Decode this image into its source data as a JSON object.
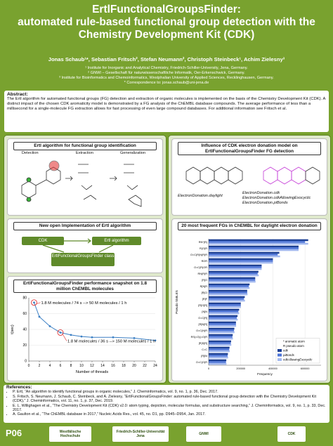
{
  "header": {
    "title_lines": [
      "ErtlFunctionalGroupsFinder:",
      "automated rule-based functional group detection with the",
      "Chemistry Development Kit (CDK)"
    ],
    "authors": "Jonas Schaub¹*, Sebastian Fritsch², Stefan Neumann², Christoph Steinbeck¹, Achim Zielesny³",
    "affiliations": [
      "¹ Institute for Inorganic and Analytical Chemistry, Friedrich-Schiller-University, Jena, Germany.",
      "² GNWI – Gesellschaft für naturwissenschaftliche Informatik, Oer-Erkenschwick, Germany.",
      "³ Institute for Bioinformatics and Chemoinformatics, Westphalian University of Applied Sciences, Recklinghausen, Germany.",
      "* Correspondence to: jonas.schaub@uni-jena.de"
    ]
  },
  "abstract": {
    "heading": "Abstract:",
    "text": "The Ertl algorithm for automated functional groups (FG) detection and extraction of organic molecules is implemented on the basis of the Chemistry Development Kit (CDK). A distinct impact of the chosen CDK aromaticity model is demonstrated by a FG analysis of the ChEMBL database compounds. The average performance of less than a millisecond for a single-molecule FG extraction allows for fast processing of even large compound databases. For additional information see Fritsch et al."
  },
  "ertl_panel": {
    "heading": "Ertl algorithm for functional group identification",
    "steps": [
      "Detection",
      "Extraction",
      "Generalization"
    ]
  },
  "implementation_panel": {
    "heading": "New open Implementation of Ertl algorithm",
    "nodes": [
      "CDK",
      "Ertl algorithm",
      "ErtlFunctionalGroupsFinder class"
    ]
  },
  "performance_panel": {
    "heading": "ErtlFunctionalGroupsFinder performance snapshot on 1.8 million ChEMBL molecules"
  },
  "donation_panel": {
    "heading": "Influence of CDK electron donation model on ErtlFunctionalGroupsFinder FG detection",
    "labels": [
      "ElectronDonation.daylight",
      "ElectronDonation.cdk",
      "ElectronDonation.cdkAllowingExocyclic",
      "ElectronDonation.piBonds"
    ]
  },
  "frequency_panel": {
    "heading": "20 most frequent FGs in ChEMBL for daylight electron donation"
  },
  "chart_data": [
    {
      "type": "line",
      "x": [
        1,
        2,
        4,
        6,
        8,
        10,
        12,
        16,
        20,
        24
      ],
      "values": [
        74,
        56,
        44,
        36,
        33,
        31,
        30,
        30,
        29,
        26
      ],
      "color": "#3b7fc4",
      "xlabel": "Number of threads",
      "ylabel": "t(sec)",
      "xlim": [
        0,
        24
      ],
      "xticks": [
        0,
        2,
        4,
        6,
        8,
        10,
        12,
        14,
        16,
        18,
        20,
        22,
        24
      ],
      "ylim": [
        0,
        80
      ],
      "yticks": [
        0,
        20,
        40,
        60,
        80
      ],
      "grid": true,
      "annotations": [
        "1.8 M molecules / 74 s --> 50 M molecules / 1 h",
        "1.8 M molecules / 36 s --> 150 M molecules / 1 h"
      ]
    },
    {
      "type": "hbar",
      "xlabel": "Frequency",
      "ylabel": "Pseudo SMILES",
      "categories": [
        "RN*(R)",
        "R(O)R",
        "O=C(R)N(R)R",
        "ROR",
        "O=C(R)OR",
        "RN(R)R",
        "[R]O",
        "R[N]R",
        "[R]Cl",
        "[R]F",
        "[R]O[R]",
        "[N]N",
        "O=C[R]",
        "[R]N[R]",
        "O=C(N)R",
        "RS(=O)(=O)R",
        "[R]S[R]",
        "C=C",
        "[R]Br",
        "O=C(O)R"
      ],
      "series": [
        {
          "name": "cdk",
          "color": "#1c3f94",
          "values": [
            620000,
            560000,
            440000,
            400000,
            330000,
            310000,
            290000,
            255000,
            240000,
            225000,
            200000,
            190000,
            180000,
            170000,
            160000,
            150000,
            140000,
            130000,
            120000,
            110000
          ]
        },
        {
          "name": "piBonds",
          "color": "#4a72d6",
          "values": [
            600000,
            560000,
            430000,
            400000,
            330000,
            305000,
            290000,
            250000,
            240000,
            220000,
            200000,
            185000,
            175000,
            170000,
            158000,
            148000,
            138000,
            128000,
            118000,
            108000
          ]
        },
        {
          "name": "cdkAllowingExocyclic",
          "color": "#a3b9ef",
          "values": [
            620000,
            560000,
            445000,
            400000,
            330000,
            312000,
            292000,
            255000,
            242000,
            226000,
            201000,
            190000,
            181000,
            171000,
            161000,
            151000,
            141000,
            131000,
            121000,
            111000
          ]
        }
      ],
      "legend_notes": [
        "* aromatic atom",
        "R pseudo atom"
      ],
      "legend": "lower-right",
      "xlim": [
        0,
        700000
      ],
      "xticks": [
        0,
        200000,
        400000,
        600000
      ],
      "grid": true
    }
  ],
  "references": {
    "heading": "References:",
    "items": [
      "P. Ertl, “An algorithm to identify functional groups in organic molecules,” J. Cheminformatics, vol. 9, no. 1, p. 36, Dec. 2017.",
      "S. Fritsch, S. Neumann, J. Schaub, C. Steinbeck, and A. Zielesny, “ErtlFunctionalGroupsFinder: automated rule-based functional group detection with the Chemistry Development Kit (CDK),” J. Cheminformatics, vol. 11, no. 1, p. 37, Dec. 2019.",
      "E. L. Willighagen et al., “The Chemistry Development Kit (CDK) v2.0: atom typing, depiction, molecular formulas, and substructure searching,” J. Cheminformatics, vol. 9, no. 1, p. 33, Dec. 2017.",
      "A. Gaulton et al., “The ChEMBL database in 2017,” Nucleic Acids Res., vol. 45, no. D1, pp. D945–D954, Jan. 2017."
    ]
  },
  "footer": {
    "poster_id": "P06",
    "logos": [
      "Westfälische Hochschule",
      "Friedrich-Schiller-Universität Jena",
      "GNWI",
      "CDK"
    ]
  }
}
